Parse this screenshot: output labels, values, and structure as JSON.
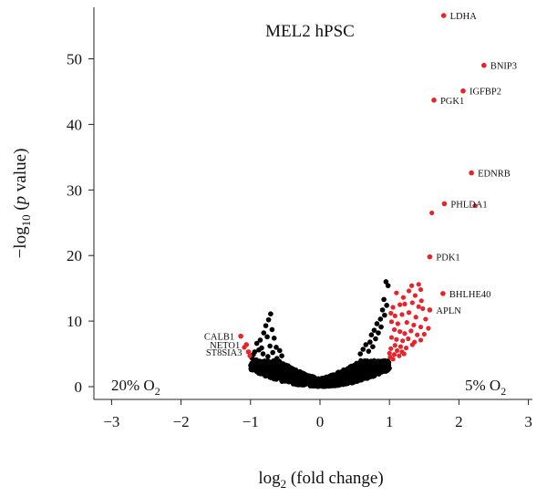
{
  "chart_data": {
    "type": "scatter",
    "title": "MEL2 hPSC",
    "xlabel_base": "log",
    "xlabel_sub": "2",
    "xlabel_rest": " (fold change)",
    "ylabel_prefix": "−log",
    "ylabel_sub": "10",
    "ylabel_open": " (",
    "ylabel_italic": "p",
    "ylabel_rest": " value)",
    "left_condition": {
      "base": "20% O",
      "sub": "2"
    },
    "right_condition": {
      "base": "5% O",
      "sub": "2"
    },
    "xlim": [
      -3.3,
      3.3
    ],
    "ylim": [
      -1,
      58
    ],
    "xticks": [
      -3,
      -2,
      -1,
      0,
      1,
      2,
      3
    ],
    "xtick_labels": [
      "−3",
      "−2",
      "−1",
      "0",
      "1",
      "2",
      "3"
    ],
    "yticks": [
      0,
      10,
      20,
      30,
      40,
      50
    ],
    "ytick_labels": [
      "0",
      "10",
      "20",
      "30",
      "40",
      "50"
    ],
    "colors": {
      "significant": "#e8242a",
      "non_significant": "#000000",
      "axis": "#222222"
    },
    "labeled_points": [
      {
        "label": "LDHA",
        "x": 1.78,
        "y": 56.6,
        "label_side": "right",
        "color": "#e8242a"
      },
      {
        "label": "BNIP3",
        "x": 2.36,
        "y": 49.0,
        "label_side": "right",
        "color": "#e8242a"
      },
      {
        "label": "IGFBP2",
        "x": 2.06,
        "y": 45.1,
        "label_side": "right",
        "color": "#e8242a"
      },
      {
        "label": "PGK1",
        "x": 1.64,
        "y": 43.7,
        "label_side": "right",
        "color": "#e8242a"
      },
      {
        "label": "EDNRB",
        "x": 2.18,
        "y": 32.6,
        "label_side": "right",
        "color": "#e8242a"
      },
      {
        "label": "PHLDA1",
        "x": 1.79,
        "y": 27.9,
        "label_side": "right",
        "color": "#e8242a"
      },
      {
        "label": "PDK1",
        "x": 1.58,
        "y": 19.8,
        "label_side": "right",
        "color": "#e8242a"
      },
      {
        "label": "BHLHE40",
        "x": 1.77,
        "y": 14.2,
        "label_side": "right",
        "color": "#e8242a"
      },
      {
        "label": "APLN",
        "x": 1.58,
        "y": 11.7,
        "label_side": "right",
        "color": "#e8242a"
      },
      {
        "label": "CALB1",
        "x": -1.14,
        "y": 7.7,
        "label_side": "left",
        "color": "#e8242a"
      },
      {
        "label": "NETO1",
        "x": -1.06,
        "y": 6.4,
        "label_side": "left",
        "color": "#e8242a"
      },
      {
        "label": "ST8SIA3",
        "x": -1.03,
        "y": 5.3,
        "label_side": "left",
        "color": "#e8242a"
      }
    ],
    "significant_points": [
      {
        "x": 1.61,
        "y": 26.5
      },
      {
        "x": 2.23,
        "y": 27.6
      },
      {
        "x": 1.32,
        "y": 15.4
      },
      {
        "x": 1.42,
        "y": 15.6
      },
      {
        "x": 1.45,
        "y": 14.8
      },
      {
        "x": 1.28,
        "y": 14.6
      },
      {
        "x": 1.1,
        "y": 14.3
      },
      {
        "x": 1.37,
        "y": 13.9
      },
      {
        "x": 1.46,
        "y": 13.1
      },
      {
        "x": 1.2,
        "y": 13.6
      },
      {
        "x": 1.05,
        "y": 12.1
      },
      {
        "x": 1.15,
        "y": 12.5
      },
      {
        "x": 1.22,
        "y": 12.6
      },
      {
        "x": 1.33,
        "y": 12.8
      },
      {
        "x": 1.42,
        "y": 12.2
      },
      {
        "x": 1.48,
        "y": 11.9
      },
      {
        "x": 1.02,
        "y": 11.2
      },
      {
        "x": 1.08,
        "y": 10.8
      },
      {
        "x": 1.18,
        "y": 11.0
      },
      {
        "x": 1.28,
        "y": 11.3
      },
      {
        "x": 1.38,
        "y": 10.6
      },
      {
        "x": 1.52,
        "y": 10.3
      },
      {
        "x": 1.03,
        "y": 9.9
      },
      {
        "x": 1.12,
        "y": 9.6
      },
      {
        "x": 1.25,
        "y": 9.8
      },
      {
        "x": 1.35,
        "y": 9.4
      },
      {
        "x": 1.45,
        "y": 9.1
      },
      {
        "x": 1.56,
        "y": 8.9
      },
      {
        "x": 1.07,
        "y": 8.7
      },
      {
        "x": 1.15,
        "y": 8.4
      },
      {
        "x": 1.22,
        "y": 8.1
      },
      {
        "x": 1.31,
        "y": 8.5
      },
      {
        "x": 1.4,
        "y": 7.9
      },
      {
        "x": 1.5,
        "y": 8.0
      },
      {
        "x": 1.03,
        "y": 7.5
      },
      {
        "x": 1.1,
        "y": 7.2
      },
      {
        "x": 1.19,
        "y": 7.0
      },
      {
        "x": 1.27,
        "y": 7.3
      },
      {
        "x": 1.36,
        "y": 6.8
      },
      {
        "x": 1.45,
        "y": 7.1
      },
      {
        "x": 1.08,
        "y": 6.3
      },
      {
        "x": 1.16,
        "y": 6.1
      },
      {
        "x": 1.24,
        "y": 5.9
      },
      {
        "x": 1.33,
        "y": 6.4
      },
      {
        "x": 1.02,
        "y": 5.8
      },
      {
        "x": 1.11,
        "y": 5.5
      },
      {
        "x": 1.18,
        "y": 5.3
      },
      {
        "x": 1.0,
        "y": 5.1
      },
      {
        "x": 1.07,
        "y": 4.9
      },
      {
        "x": 1.14,
        "y": 4.7
      },
      {
        "x": 1.21,
        "y": 5.0
      },
      {
        "x": 1.01,
        "y": 4.5
      },
      {
        "x": 1.05,
        "y": 4.2
      },
      {
        "x": -1.01,
        "y": 4.7
      },
      {
        "x": -1.09,
        "y": 6.0
      }
    ],
    "non_significant_points": [
      {
        "x": -0.71,
        "y": 11.1
      },
      {
        "x": -0.74,
        "y": 10.2
      },
      {
        "x": -0.78,
        "y": 9.3
      },
      {
        "x": -0.69,
        "y": 8.7
      },
      {
        "x": -0.81,
        "y": 8.2
      },
      {
        "x": -0.76,
        "y": 7.6
      },
      {
        "x": -0.86,
        "y": 7.1
      },
      {
        "x": -0.66,
        "y": 7.4
      },
      {
        "x": -0.91,
        "y": 6.6
      },
      {
        "x": -0.72,
        "y": 6.2
      },
      {
        "x": -0.84,
        "y": 5.9
      },
      {
        "x": -0.63,
        "y": 6.0
      },
      {
        "x": -0.94,
        "y": 5.3
      },
      {
        "x": -0.88,
        "y": 5.6
      },
      {
        "x": -0.96,
        "y": 4.9
      },
      {
        "x": -0.98,
        "y": 4.4
      },
      {
        "x": -0.92,
        "y": 4.1
      },
      {
        "x": -0.82,
        "y": 5.0
      },
      {
        "x": -0.75,
        "y": 4.6
      },
      {
        "x": -0.68,
        "y": 5.2
      },
      {
        "x": -0.58,
        "y": 5.5
      },
      {
        "x": -0.55,
        "y": 4.7
      },
      {
        "x": -0.62,
        "y": 4.3
      },
      {
        "x": 0.95,
        "y": 16.0
      },
      {
        "x": 0.98,
        "y": 15.4
      },
      {
        "x": 0.92,
        "y": 13.3
      },
      {
        "x": 0.96,
        "y": 12.4
      },
      {
        "x": 0.9,
        "y": 11.7
      },
      {
        "x": 0.93,
        "y": 10.9
      },
      {
        "x": 0.87,
        "y": 10.3
      },
      {
        "x": 0.82,
        "y": 9.6
      },
      {
        "x": 0.88,
        "y": 9.1
      },
      {
        "x": 0.78,
        "y": 8.6
      },
      {
        "x": 0.84,
        "y": 8.2
      },
      {
        "x": 0.74,
        "y": 7.9
      },
      {
        "x": 0.8,
        "y": 7.3
      },
      {
        "x": 0.72,
        "y": 6.8
      },
      {
        "x": 0.66,
        "y": 6.4
      },
      {
        "x": 0.76,
        "y": 6.1
      },
      {
        "x": 0.62,
        "y": 5.7
      },
      {
        "x": 0.7,
        "y": 5.4
      },
      {
        "x": 0.58,
        "y": 5.0
      }
    ],
    "background_cloud": {
      "shape": "v",
      "x_range": [
        -1.0,
        1.0
      ],
      "max_y": 4.0
    }
  }
}
